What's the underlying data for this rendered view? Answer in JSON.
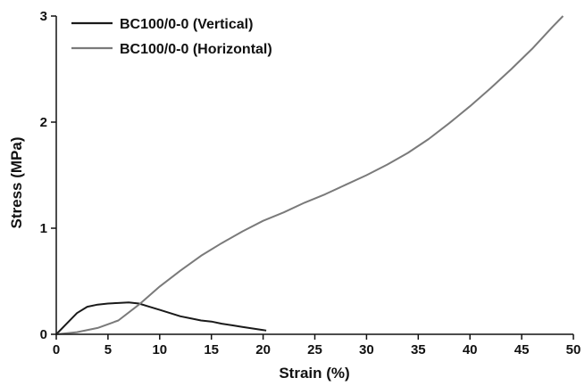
{
  "chart_data": {
    "type": "line",
    "title": "",
    "xlabel": "Strain (%)",
    "ylabel": "Stress (MPa)",
    "xlim": [
      0,
      50
    ],
    "ylim": [
      0,
      3
    ],
    "xticks": [
      0,
      5,
      10,
      15,
      20,
      25,
      30,
      35,
      40,
      45,
      50
    ],
    "yticks": [
      0,
      1,
      2,
      3
    ],
    "grid": false,
    "legend_position": "top-left",
    "series": [
      {
        "name": "BC100/0-0 (Vertical)",
        "color": "#1a1a1a",
        "x": [
          0,
          1,
          2,
          3,
          4,
          5,
          6,
          7,
          8,
          9,
          10,
          11,
          12,
          13,
          14,
          15,
          16,
          17,
          18,
          19,
          20,
          20.3
        ],
        "y": [
          0,
          0.1,
          0.2,
          0.26,
          0.28,
          0.29,
          0.295,
          0.3,
          0.29,
          0.26,
          0.23,
          0.2,
          0.17,
          0.15,
          0.13,
          0.12,
          0.1,
          0.085,
          0.07,
          0.055,
          0.04,
          0.035
        ]
      },
      {
        "name": "BC100/0-0 (Horizontal)",
        "color": "#7a7a7a",
        "x": [
          0,
          2,
          4,
          6,
          8,
          10,
          12,
          14,
          16,
          18,
          20,
          22,
          24,
          26,
          28,
          30,
          32,
          34,
          36,
          38,
          40,
          42,
          44,
          46,
          48,
          49
        ],
        "y": [
          0,
          0.02,
          0.06,
          0.13,
          0.28,
          0.45,
          0.6,
          0.74,
          0.86,
          0.97,
          1.07,
          1.15,
          1.24,
          1.32,
          1.41,
          1.5,
          1.6,
          1.71,
          1.84,
          1.99,
          2.15,
          2.32,
          2.5,
          2.69,
          2.9,
          3.0
        ]
      }
    ]
  }
}
